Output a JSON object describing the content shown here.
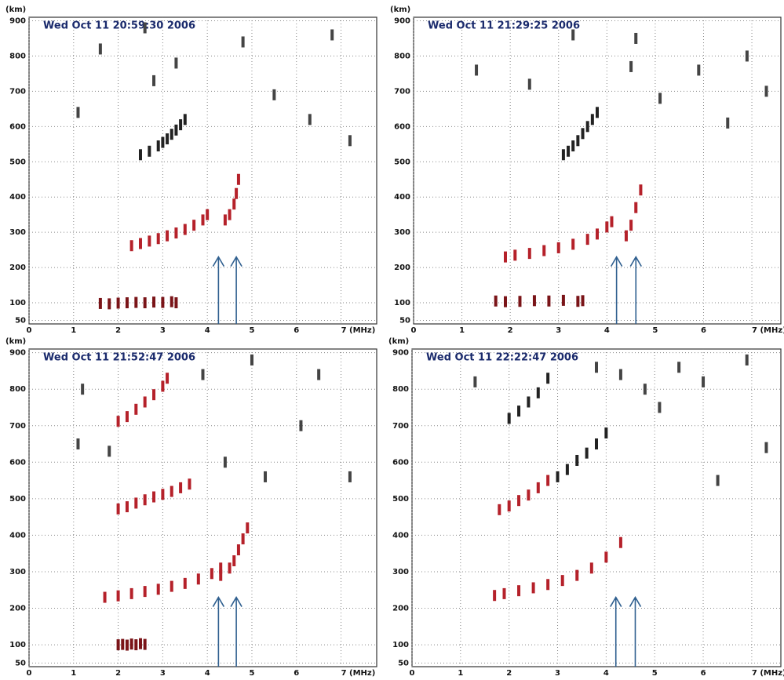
{
  "chart_data": [
    {
      "type": "ionogram",
      "title": "Wed Oct 11 20:59:30 2006",
      "y_label": "(km)",
      "xlim": [
        0,
        7.8
      ],
      "ylim": [
        40,
        910
      ],
      "xticks": [
        0,
        1,
        2,
        3,
        4,
        5,
        6,
        {
          "value": 7,
          "label": "7 (MHz)"
        }
      ],
      "yticks": [
        50,
        100,
        200,
        300,
        400,
        500,
        600,
        700,
        800,
        900
      ],
      "grid": true,
      "arrows_x": [
        4.25,
        4.65
      ],
      "series": [
        {
          "color": "#b5212a",
          "x": [
            2.3,
            2.5,
            2.7,
            2.9,
            3.1,
            3.3,
            3.5,
            3.7,
            3.9,
            4.0
          ],
          "values": [
            262,
            268,
            275,
            282,
            290,
            298,
            308,
            320,
            335,
            350
          ]
        },
        {
          "color": "#b5212a",
          "x": [
            4.4,
            4.5,
            4.6,
            4.65,
            4.7
          ],
          "values": [
            335,
            350,
            380,
            410,
            450
          ]
        },
        {
          "color": "#7a1418",
          "x": [
            1.6,
            1.8,
            2.0,
            2.2,
            2.4,
            2.6,
            2.8,
            3.0,
            3.2,
            3.3
          ],
          "values": [
            98,
            97,
            99,
            100,
            101,
            100,
            102,
            101,
            103,
            100
          ]
        },
        {
          "color": "#222222",
          "x": [
            2.5,
            2.7,
            2.9,
            3.0,
            3.1,
            3.2,
            3.3,
            3.4,
            3.5
          ],
          "values": [
            520,
            530,
            545,
            555,
            565,
            578,
            590,
            605,
            620
          ]
        },
        {
          "color": "#444444",
          "x": [
            1.1,
            1.6,
            2.6,
            2.8,
            3.3,
            4.8,
            5.5,
            6.3,
            6.8,
            7.2
          ],
          "values": [
            640,
            820,
            880,
            730,
            780,
            840,
            690,
            620,
            860,
            560
          ]
        }
      ]
    },
    {
      "type": "ionogram",
      "title": "Wed Oct 11 21:29:25 2006",
      "y_label": "(km)",
      "xlim": [
        0,
        7.6
      ],
      "ylim": [
        40,
        910
      ],
      "xticks": [
        0,
        1,
        2,
        3,
        4,
        5,
        6,
        {
          "value": 7,
          "label": "7 (MHz)"
        }
      ],
      "yticks": [
        50,
        100,
        200,
        300,
        400,
        500,
        600,
        700,
        800,
        900
      ],
      "grid": true,
      "arrows_x": [
        4.2,
        4.6
      ],
      "series": [
        {
          "color": "#b5212a",
          "x": [
            1.9,
            2.1,
            2.4,
            2.7,
            3.0,
            3.3,
            3.6,
            3.8,
            4.0,
            4.1
          ],
          "values": [
            230,
            235,
            240,
            248,
            256,
            266,
            280,
            295,
            315,
            330
          ]
        },
        {
          "color": "#b5212a",
          "x": [
            4.4,
            4.5,
            4.6,
            4.7
          ],
          "values": [
            290,
            320,
            370,
            420
          ]
        },
        {
          "color": "#7a1418",
          "x": [
            1.7,
            1.9,
            2.2,
            2.5,
            2.8,
            3.1,
            3.4,
            3.5
          ],
          "values": [
            105,
            103,
            104,
            106,
            105,
            107,
            104,
            106
          ]
        },
        {
          "color": "#222222",
          "x": [
            3.1,
            3.2,
            3.3,
            3.4,
            3.5,
            3.6,
            3.7,
            3.8
          ],
          "values": [
            520,
            530,
            545,
            560,
            580,
            600,
            620,
            640
          ]
        },
        {
          "color": "#444444",
          "x": [
            1.3,
            2.4,
            3.3,
            4.5,
            4.6,
            5.1,
            5.9,
            6.5,
            6.9,
            7.3
          ],
          "values": [
            760,
            720,
            860,
            770,
            850,
            680,
            760,
            610,
            800,
            700
          ]
        }
      ]
    },
    {
      "type": "ionogram",
      "title": "Wed Oct 11 21:52:47 2006",
      "y_label": "(km)",
      "xlim": [
        0,
        7.8
      ],
      "ylim": [
        40,
        910
      ],
      "xticks": [
        0,
        1,
        2,
        3,
        4,
        5,
        6,
        {
          "value": 7,
          "label": "7 (MHz)"
        }
      ],
      "yticks": [
        50,
        100,
        200,
        300,
        400,
        500,
        600,
        700,
        800,
        900
      ],
      "grid": true,
      "arrows_x": [
        4.25,
        4.65
      ],
      "series": [
        {
          "color": "#b5212a",
          "x": [
            1.7,
            2.0,
            2.3,
            2.6,
            2.9,
            3.2,
            3.5,
            3.8,
            4.1,
            4.3
          ],
          "values": [
            230,
            234,
            240,
            246,
            252,
            260,
            268,
            280,
            295,
            310
          ]
        },
        {
          "color": "#b5212a",
          "x": [
            4.3,
            4.5,
            4.6,
            4.7,
            4.8,
            4.9
          ],
          "values": [
            290,
            310,
            330,
            360,
            390,
            420
          ]
        },
        {
          "color": "#b5212a",
          "x": [
            2.0,
            2.2,
            2.4,
            2.6,
            2.8,
            3.0,
            3.2,
            3.4,
            3.6
          ],
          "values": [
            472,
            478,
            488,
            497,
            505,
            512,
            520,
            530,
            540
          ]
        },
        {
          "color": "#b5212a",
          "x": [
            2.0,
            2.2,
            2.4,
            2.6,
            2.8,
            3.0,
            3.1
          ],
          "values": [
            712,
            725,
            745,
            765,
            785,
            808,
            830
          ]
        },
        {
          "color": "#7a1418",
          "x": [
            2.0,
            2.1,
            2.2,
            2.3,
            2.4,
            2.5,
            2.6
          ],
          "values": [
            100,
            101,
            99,
            102,
            100,
            103,
            101
          ]
        },
        {
          "color": "#444444",
          "x": [
            1.1,
            1.2,
            1.8,
            3.9,
            4.4,
            5.0,
            5.3,
            6.1,
            6.5,
            7.2
          ],
          "values": [
            650,
            800,
            630,
            840,
            600,
            880,
            560,
            700,
            840,
            560
          ]
        }
      ]
    },
    {
      "type": "ionogram",
      "title": "Wed Oct 11 22:22:47 2006",
      "y_label": "(km)",
      "xlim": [
        0,
        7.6
      ],
      "ylim": [
        40,
        910
      ],
      "xticks": [
        0,
        1,
        2,
        3,
        4,
        5,
        6,
        {
          "value": 7,
          "label": "7 (MHz)"
        }
      ],
      "yticks": [
        50,
        100,
        200,
        300,
        400,
        500,
        600,
        700,
        800,
        900
      ],
      "grid": true,
      "arrows_x": [
        4.2,
        4.6
      ],
      "series": [
        {
          "color": "#b5212a",
          "x": [
            1.7,
            1.9,
            2.2,
            2.5,
            2.8,
            3.1,
            3.4,
            3.7,
            4.0,
            4.3
          ],
          "values": [
            235,
            240,
            248,
            256,
            265,
            276,
            290,
            310,
            340,
            380
          ]
        },
        {
          "color": "#b5212a",
          "x": [
            1.8,
            2.0,
            2.2,
            2.4,
            2.6,
            2.8
          ],
          "values": [
            470,
            480,
            495,
            510,
            530,
            550
          ]
        },
        {
          "color": "#222222",
          "x": [
            3.0,
            3.2,
            3.4,
            3.6,
            3.8,
            4.0
          ],
          "values": [
            560,
            580,
            605,
            625,
            650,
            680
          ]
        },
        {
          "color": "#222222",
          "x": [
            2.0,
            2.2,
            2.4,
            2.6,
            2.8
          ],
          "values": [
            720,
            740,
            765,
            790,
            830
          ]
        },
        {
          "color": "#444444",
          "x": [
            1.3,
            3.8,
            4.3,
            4.8,
            5.1,
            5.5,
            6.0,
            6.3,
            6.9,
            7.3
          ],
          "values": [
            820,
            860,
            840,
            800,
            750,
            860,
            820,
            550,
            880,
            640
          ]
        }
      ]
    }
  ]
}
